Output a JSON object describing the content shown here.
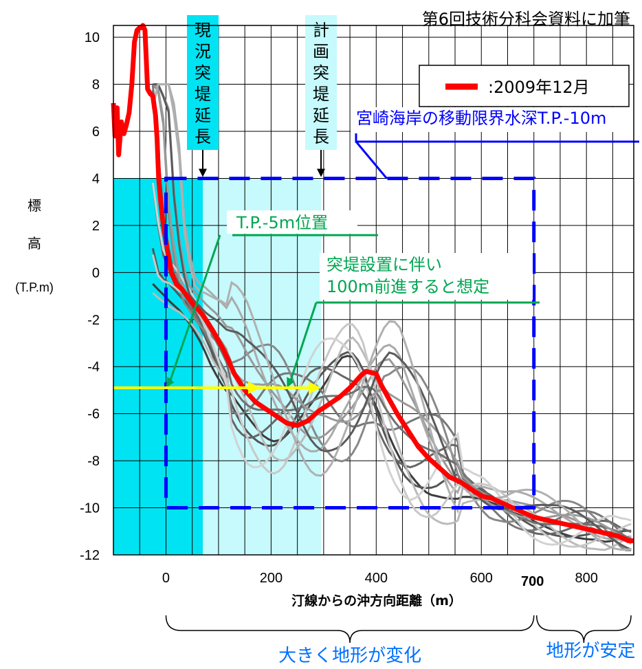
{
  "chart_data": {
    "type": "line",
    "source_note": "第6回技術分科会資料に加筆",
    "xlabel": "汀線からの沖方向距離（m）",
    "ylabel_chars": [
      "標",
      "高"
    ],
    "ylabel_unit": "(T.P.m)",
    "xlim": [
      -100,
      890
    ],
    "ylim": [
      -12,
      10.5
    ],
    "x_ticks": [
      0,
      200,
      400,
      600,
      800
    ],
    "x_tick_labels": [
      "0",
      "200",
      "400",
      "600",
      "800"
    ],
    "x_emphasis_tick": {
      "value": 700,
      "label": "700"
    },
    "y_ticks": [
      10,
      8,
      6,
      4,
      2,
      0,
      -2,
      -4,
      -6,
      -8,
      -10,
      -12
    ],
    "y_tick_labels": [
      "10",
      "8",
      "6",
      "4",
      "2",
      "0",
      "-2",
      "-4",
      "-6",
      "-8",
      "-10",
      "-12"
    ],
    "grid": true,
    "legend": {
      "position": "top-right",
      "label": ":2009年12月"
    },
    "series": [
      {
        "name": ":2009年12月",
        "color": "#ff0000",
        "x": [
          -100,
          -97,
          -93,
          -90,
          -85,
          -80,
          -75,
          -70,
          -65,
          -60,
          -55,
          -50,
          -47,
          -44,
          -40,
          -35,
          -30,
          -25,
          -20,
          -17,
          -14,
          -10,
          -5,
          0,
          10,
          20,
          30,
          50,
          70,
          90,
          110,
          130,
          150,
          170,
          190,
          210,
          230,
          250,
          270,
          290,
          310,
          330,
          350,
          370,
          380,
          400,
          410,
          420,
          440,
          460,
          480,
          500,
          520,
          540,
          560,
          580,
          600,
          620,
          640,
          660,
          680,
          700,
          720,
          740,
          760,
          780,
          800,
          820,
          840,
          860,
          880,
          890
        ],
        "y": [
          7.2,
          5.8,
          7.0,
          5.0,
          6.4,
          5.9,
          6.3,
          6.8,
          8.0,
          9.8,
          10.3,
          10.4,
          10.4,
          10.5,
          10.3,
          7.8,
          7.6,
          7.5,
          6.7,
          5.7,
          4.0,
          3.0,
          2.0,
          1.3,
          0.0,
          -0.5,
          -0.7,
          -1.3,
          -1.8,
          -2.5,
          -3.3,
          -4.3,
          -5.0,
          -5.5,
          -5.8,
          -6.1,
          -6.4,
          -6.5,
          -6.3,
          -5.9,
          -5.6,
          -5.3,
          -4.9,
          -4.4,
          -4.2,
          -4.3,
          -4.8,
          -5.2,
          -6.0,
          -6.7,
          -7.4,
          -7.9,
          -8.3,
          -8.7,
          -8.9,
          -9.2,
          -9.5,
          -9.6,
          -9.8,
          -10.0,
          -10.2,
          -10.4,
          -10.5,
          -10.6,
          -10.7,
          -10.8,
          -10.9,
          -11.0,
          -11.1,
          -11.2,
          -11.4,
          -11.4
        ]
      }
    ],
    "historical_profiles_color_range": [
      "#3c3c3c",
      "#d2d2d2"
    ],
    "annotations": {
      "current_groyne": {
        "label": "現況突堤延長",
        "x": 70,
        "top_y": 4
      },
      "planned_groyne": {
        "label": "計画突堤延長",
        "x": 295,
        "top_y": 4
      },
      "closure_depth": {
        "label": "宮崎海岸の移動限界水深T.P.-10m",
        "box": {
          "x0": 0,
          "x1": 700,
          "y0": -10,
          "y1": 4
        }
      },
      "tp_minus5": {
        "label": "T.P.-5m位置",
        "y": -4.9
      },
      "advance": {
        "line1": "突堤設置に伴い",
        "line2": "100m前進すると想定",
        "arrow_y": -4.9,
        "x_from": -100,
        "x_to": 295
      }
    },
    "brace_labels": {
      "changing": "大きく地形が変化",
      "stable": "地形が安定"
    },
    "colors": {
      "shade_current": "#00e3f2",
      "shade_planned": "#c6fafc",
      "box": "#0000ff",
      "green_text": "#00a651",
      "arrow": "#ffff00",
      "brace_text": "#0070ff"
    }
  }
}
